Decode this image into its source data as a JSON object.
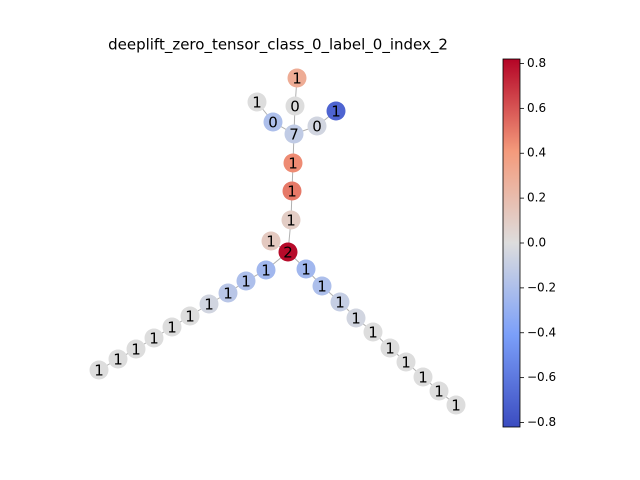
{
  "title": "deeplift_zero_tensor_class_0_label_0_index_2",
  "nodes": [
    {
      "label": "1",
      "value": 0.3
    },
    {
      "label": "0",
      "value": 0.0
    },
    {
      "label": "1",
      "value": 0.0
    },
    {
      "label": "0",
      "value": -0.2
    },
    {
      "label": "7",
      "value": -0.12
    },
    {
      "label": "0",
      "value": -0.05
    },
    {
      "label": "1",
      "value": -0.7
    },
    {
      "label": "1",
      "value": 0.45
    },
    {
      "label": "1",
      "value": 0.5
    },
    {
      "label": "1",
      "value": 0.1
    },
    {
      "label": "1",
      "value": 0.12
    },
    {
      "label": "2",
      "value": 0.8
    },
    {
      "label": "1",
      "value": -0.25
    },
    {
      "label": "1",
      "value": -0.2
    },
    {
      "label": "1",
      "value": -0.15
    },
    {
      "label": "1",
      "value": -0.05
    },
    {
      "label": "1",
      "value": 0.0
    },
    {
      "label": "1",
      "value": 0.0
    },
    {
      "label": "1",
      "value": 0.0
    },
    {
      "label": "1",
      "value": 0.0
    },
    {
      "label": "1",
      "value": 0.0
    },
    {
      "label": "1",
      "value": 0.0
    },
    {
      "label": "1",
      "value": -0.25
    },
    {
      "label": "1",
      "value": -0.2
    },
    {
      "label": "1",
      "value": -0.1
    },
    {
      "label": "1",
      "value": -0.05
    },
    {
      "label": "1",
      "value": 0.0
    },
    {
      "label": "1",
      "value": 0.0
    },
    {
      "label": "1",
      "value": 0.0
    },
    {
      "label": "1",
      "value": 0.0
    },
    {
      "label": "1",
      "value": 0.0
    },
    {
      "label": "1",
      "value": 0.0
    }
  ],
  "colorbar": {
    "lim": [
      -0.82,
      0.82
    ],
    "colormap": [
      "#3b4cc0",
      "#7b9ff9",
      "#dddddd",
      "#f49a7b",
      "#b40426"
    ],
    "ticks": [
      0.8,
      0.6,
      0.4,
      0.2,
      {
        "value": 0,
        "label": "0.0"
      },
      {
        "value": -0.2,
        "label": "−0.2"
      },
      {
        "value": -0.4,
        "label": "−0.4"
      },
      {
        "value": -0.6,
        "label": "−0.6"
      },
      {
        "value": -0.8,
        "label": "−0.8"
      }
    ]
  }
}
